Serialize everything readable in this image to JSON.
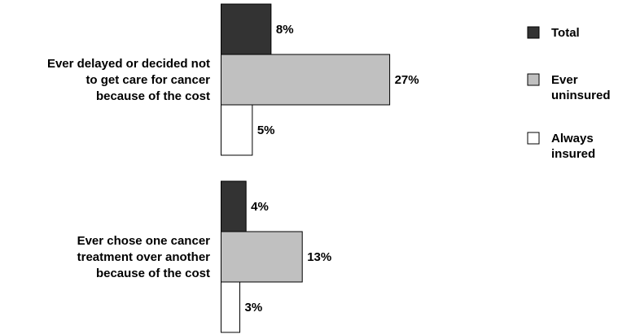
{
  "chart_data": {
    "type": "bar",
    "orientation": "horizontal",
    "categories": [
      [
        "Ever delayed or decided not",
        "to get care for cancer",
        "because of the cost"
      ],
      [
        "Ever chose one cancer",
        "treatment over another",
        "because of the cost"
      ]
    ],
    "series": [
      {
        "name": "Total",
        "values": [
          8,
          4
        ],
        "color": "#333333"
      },
      {
        "name": "Ever uninsured",
        "legend_lines": [
          "Ever",
          "uninsured"
        ],
        "values": [
          27,
          13
        ],
        "color": "#c0c0c0"
      },
      {
        "name": "Always insured",
        "legend_lines": [
          "Always",
          "insured"
        ],
        "values": [
          5,
          3
        ],
        "color": "#ffffff"
      }
    ],
    "value_suffix": "%",
    "title": "",
    "xlabel": "",
    "ylabel": "",
    "axes_visible": false,
    "grid": false,
    "legend_position": "right"
  }
}
